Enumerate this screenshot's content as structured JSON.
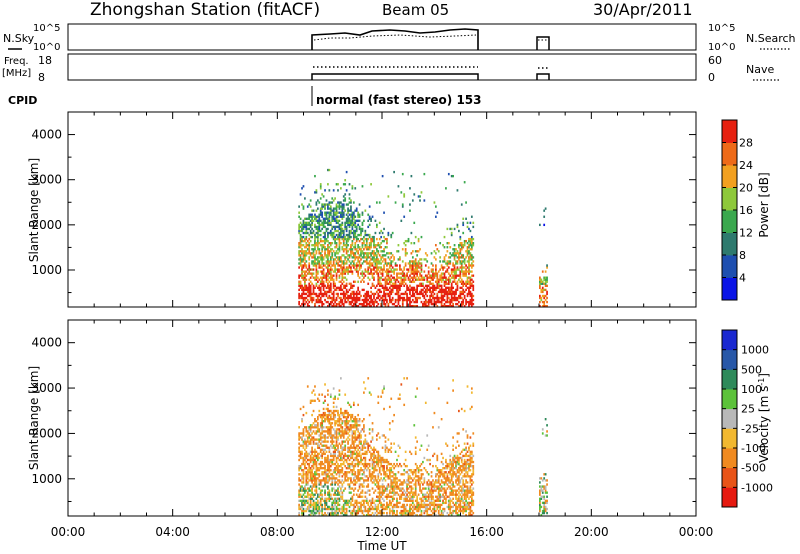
{
  "header": {
    "title": "Zhongshan Station (fitACF)",
    "beam": "Beam 05",
    "date": "30/Apr/2011"
  },
  "panels": {
    "nsky": {
      "label": "N.Sky",
      "ticks_left": [
        "10^5",
        "10^0"
      ],
      "ticks_right": [
        "10^5",
        "10^0"
      ],
      "right_label": "N.Search"
    },
    "freq": {
      "label": "Freq.",
      "unit": "[MHz]",
      "ticks_left": [
        "18",
        "8"
      ],
      "ticks_right": [
        "60",
        "0"
      ],
      "right_label": "Nave"
    },
    "cpid": {
      "label": "CPID",
      "text": "normal (fast stereo) 153"
    }
  },
  "chart_data": [
    {
      "type": "heatmap",
      "title": "",
      "xlabel": "",
      "ylabel": "Slant Range [km]",
      "x_ticks": [
        "00:00",
        "04:00",
        "08:00",
        "12:00",
        "16:00",
        "20:00",
        "00:00"
      ],
      "y_ticks": [
        "1000",
        "2000",
        "3000",
        "4000"
      ],
      "xlim": [
        0,
        24
      ],
      "ylim": [
        180,
        4500
      ],
      "colorbar": {
        "label": "Power [dB]",
        "ticks": [
          "4",
          "8",
          "12",
          "16",
          "20",
          "24",
          "28"
        ],
        "range": [
          0,
          32
        ]
      },
      "colors": [
        "#0a14e6",
        "#1e4fb0",
        "#2e7a6e",
        "#3aa84e",
        "#8ec83a",
        "#f2a020",
        "#ee6a18",
        "#e62010"
      ],
      "data_regions": [
        {
          "t_start": 8.8,
          "t_end": 15.5,
          "range_min": 180,
          "range_max": 3200
        },
        {
          "t_start": 18.0,
          "t_end": 18.3,
          "range_min": 180,
          "range_max": 2400
        }
      ]
    },
    {
      "type": "heatmap",
      "title": "",
      "xlabel": "Time UT",
      "ylabel": "Slant Range [km]",
      "x_ticks": [
        "00:00",
        "04:00",
        "08:00",
        "12:00",
        "16:00",
        "20:00",
        "00:00"
      ],
      "y_ticks": [
        "1000",
        "2000",
        "3000",
        "4000"
      ],
      "xlim": [
        0,
        24
      ],
      "ylim": [
        180,
        4500
      ],
      "colorbar": {
        "label": "Velocity [m s",
        "label_sup": "-1",
        "label_end": "]",
        "ticks": [
          "1000",
          "500",
          "100",
          "25",
          "-25",
          "-100",
          "-500",
          "-1000"
        ]
      },
      "colors": [
        "#1a28d0",
        "#2858a8",
        "#2e8a5a",
        "#5cc23a",
        "#b8b8b8",
        "#f2b830",
        "#f08a20",
        "#e85418",
        "#e61a10"
      ],
      "data_regions": [
        {
          "t_start": 8.8,
          "t_end": 15.5,
          "range_min": 180,
          "range_max": 3200
        },
        {
          "t_start": 18.0,
          "t_end": 18.3,
          "range_min": 180,
          "range_max": 2400
        }
      ]
    }
  ]
}
